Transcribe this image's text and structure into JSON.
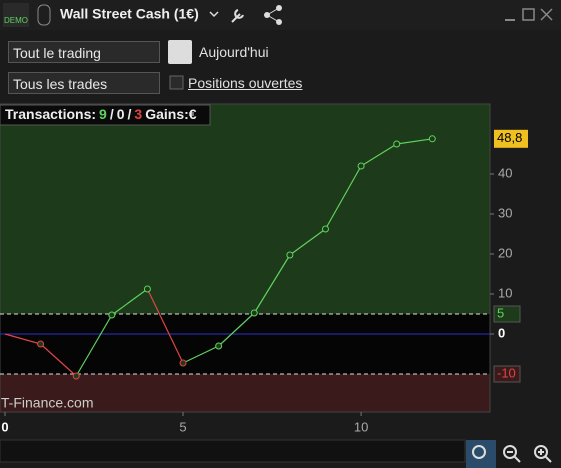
{
  "header": {
    "badge": "DEMO",
    "instrument": "Wall Street Cash (1€)"
  },
  "controls": {
    "period_select": "Tout le trading",
    "date_label": "Aujourd'hui",
    "trades_select": "Tous les trades",
    "open_positions": "Positions ouvertes"
  },
  "chart_data": {
    "type": "line",
    "stats": {
      "label": "Transactions:",
      "winning": "9",
      "sep1": "/",
      "neutral": "0",
      "sep2": "/",
      "losing": "3",
      "gains": "Gains:€"
    },
    "watermark": "IT-Finance.com",
    "x": [
      0,
      1,
      2,
      3,
      4,
      5,
      6,
      7,
      8,
      9,
      10,
      11,
      12
    ],
    "series": [
      {
        "values": [
          0,
          -2.5,
          -10.5,
          4.75,
          11.25,
          -7.25,
          -3,
          5.25,
          19.75,
          26.25,
          42,
          47.5,
          48.8
        ],
        "color": "#5fd35f",
        "down_color": "#e04444"
      }
    ],
    "xlim": [
      -0.14,
      13.62
    ],
    "xticks": [
      0,
      5,
      10
    ],
    "ylim": [
      -19.5,
      57.5
    ],
    "yticks": [
      0,
      10,
      20,
      30,
      40
    ],
    "last_value": {
      "value": 48.8,
      "label": "48,8"
    },
    "upper_level": 5,
    "lower_level": -10,
    "zero_color": "#3030d0"
  }
}
